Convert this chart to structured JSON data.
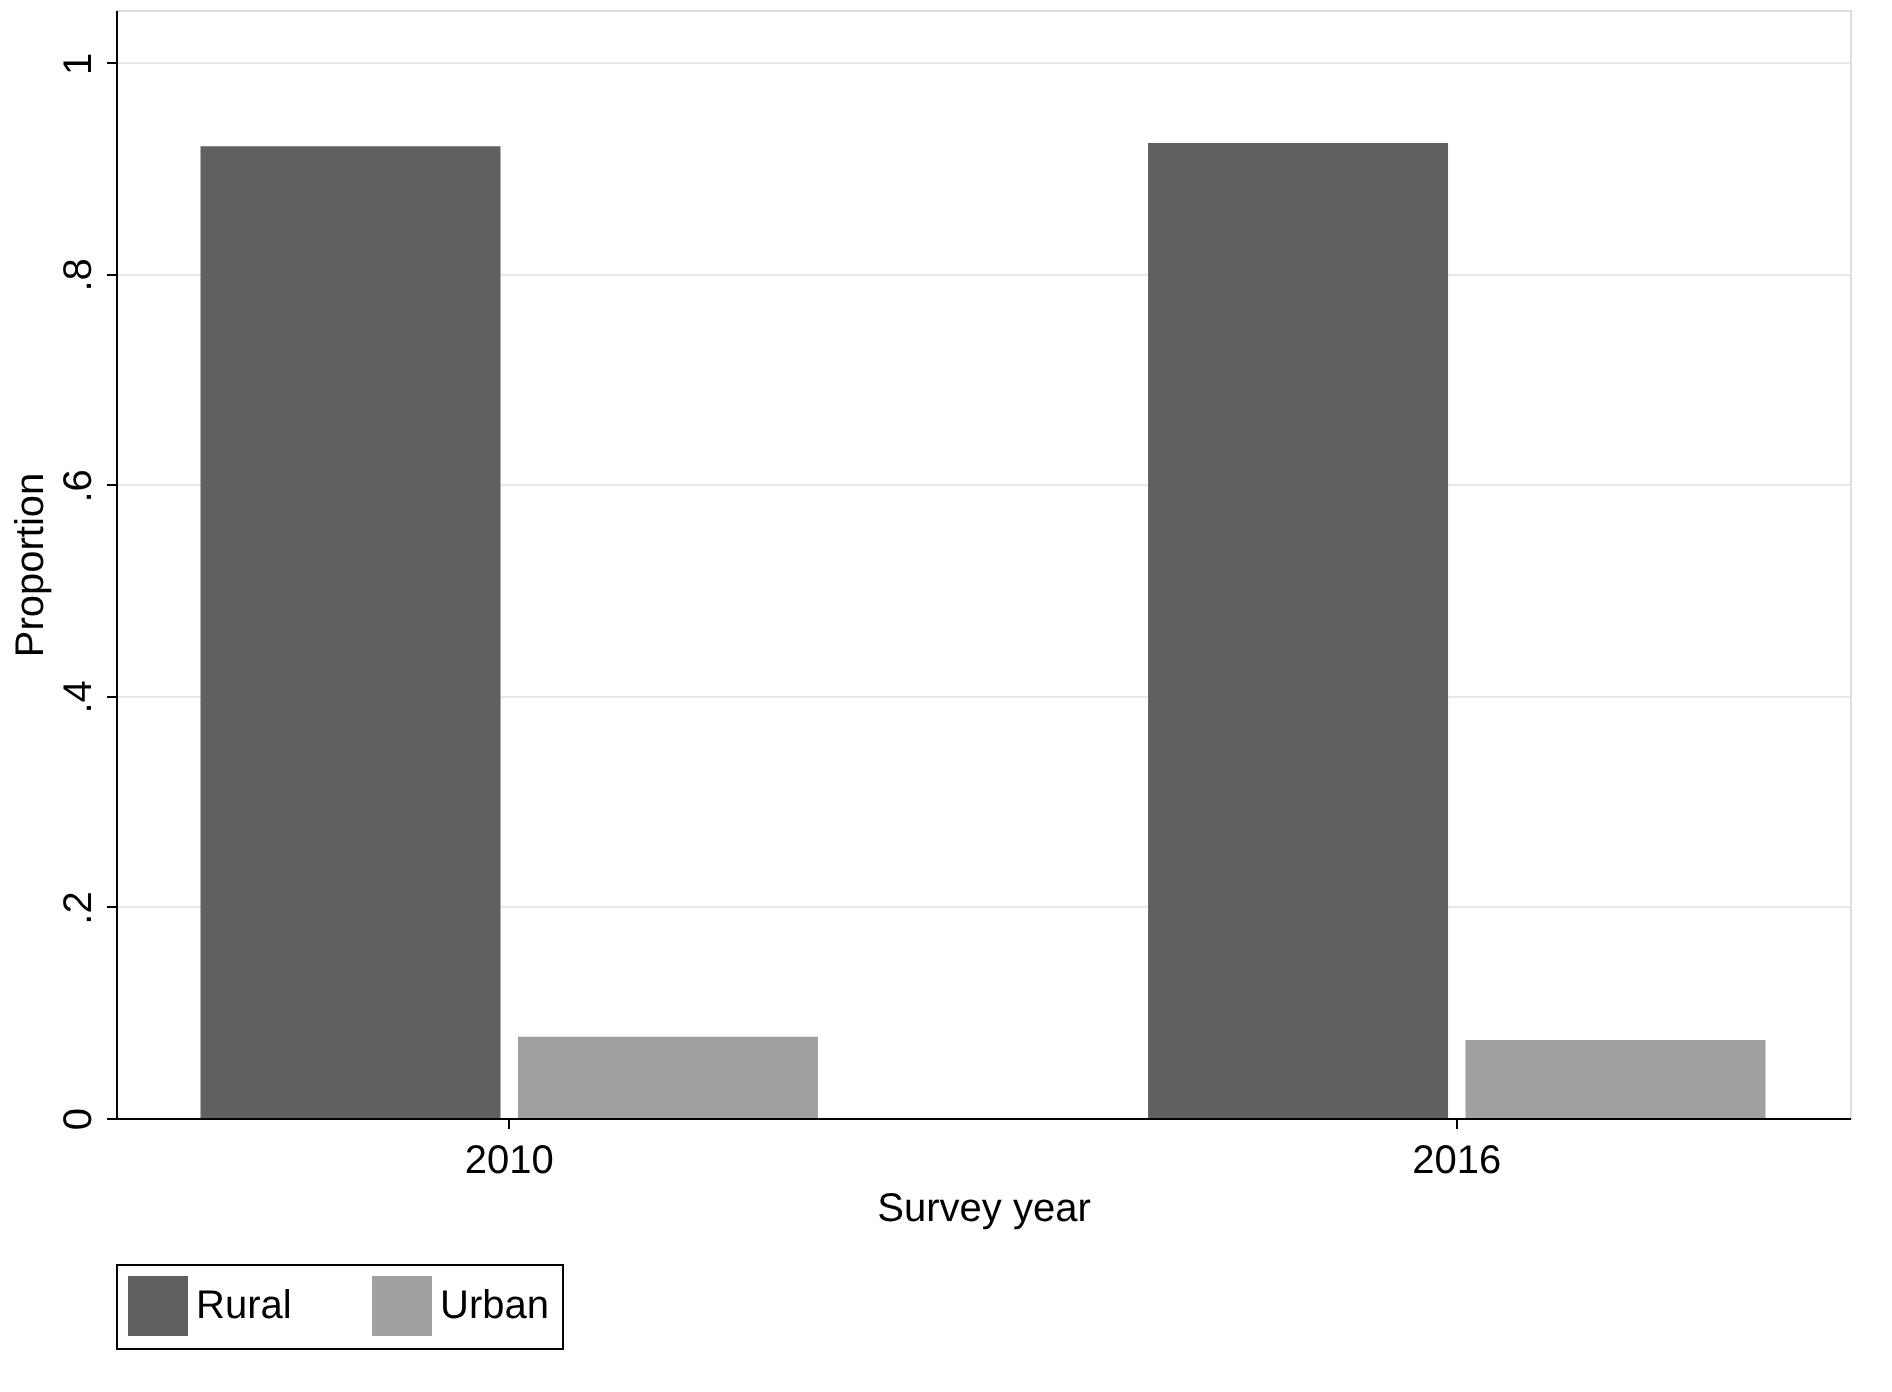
{
  "chart_data": {
    "type": "bar",
    "xlabel": "Survey year",
    "ylabel": "Proportion",
    "categories": [
      "2010",
      "2016"
    ],
    "series": [
      {
        "name": "Rural",
        "color": "#606060",
        "values": [
          0.921,
          0.924
        ]
      },
      {
        "name": "Urban",
        "color": "#a0a0a0",
        "values": [
          0.077,
          0.074
        ]
      }
    ],
    "ylim": [
      0,
      1.05
    ],
    "yticks": [
      {
        "value": 0,
        "label": "0"
      },
      {
        "value": 0.2,
        "label": ".2"
      },
      {
        "value": 0.4,
        "label": ".4"
      },
      {
        "value": 0.6,
        "label": ".6"
      },
      {
        "value": 0.8,
        "label": ".8"
      },
      {
        "value": 1,
        "label": "1"
      }
    ],
    "grid": "y",
    "legend": "bottom"
  }
}
